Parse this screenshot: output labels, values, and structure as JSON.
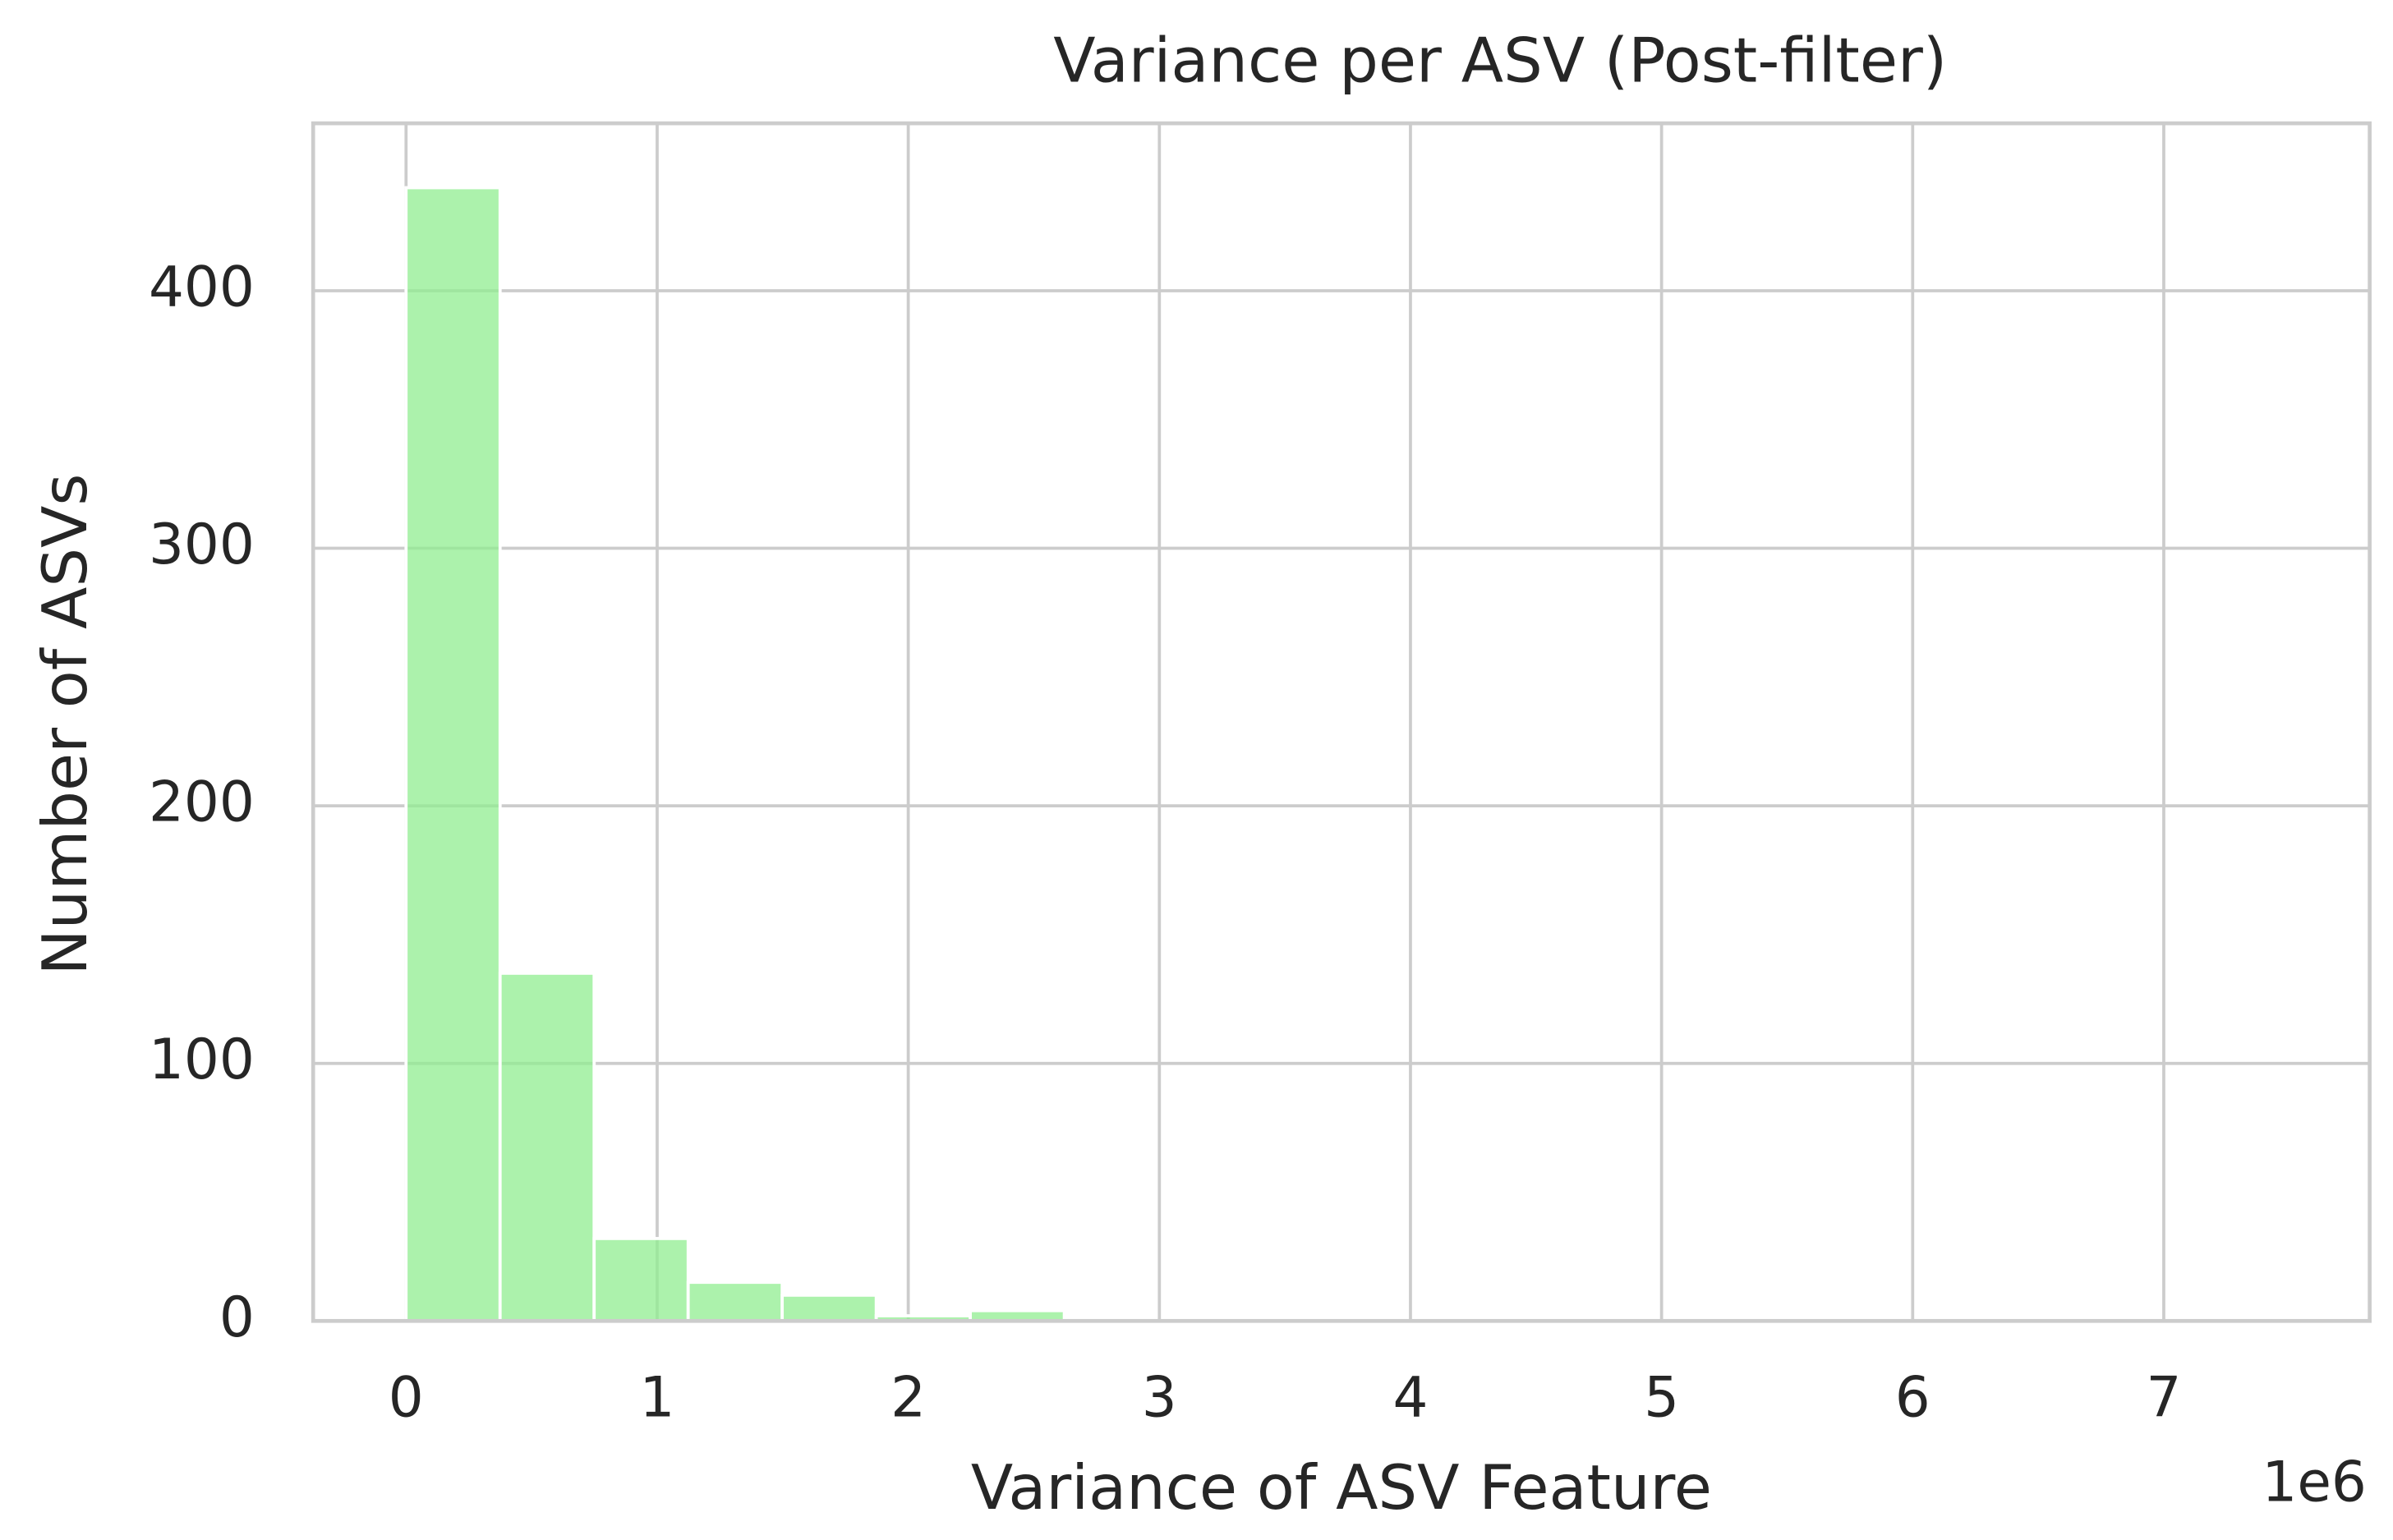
{
  "chart_data": {
    "type": "histogram",
    "title": "Variance per ASV (Post-filter)",
    "x_label": "Variance of ASV Feature",
    "y_label": "Number of ASVs",
    "x_offset_label": "1e6",
    "bins": [
      0,
      0.3745,
      0.749,
      1.1235,
      1.498,
      1.8725,
      2.247,
      2.6215,
      2.996,
      3.3705,
      3.745,
      4.1195,
      4.494,
      4.8685,
      5.243,
      5.6175,
      5.992,
      6.3665,
      6.741,
      7.1155,
      7.49
    ],
    "values": [
      440,
      135,
      32,
      15,
      10,
      2,
      4,
      0,
      0,
      0,
      0,
      0,
      0,
      0,
      0,
      0,
      0,
      0,
      0,
      1
    ],
    "color": "#90ee90",
    "xlim": [
      -0.37,
      7.82
    ],
    "xticks": [
      0,
      1,
      2,
      3,
      4,
      5,
      6,
      7
    ],
    "ylim": [
      0,
      465
    ],
    "yticks": [
      0,
      100,
      200,
      300,
      400
    ],
    "grid": true
  }
}
